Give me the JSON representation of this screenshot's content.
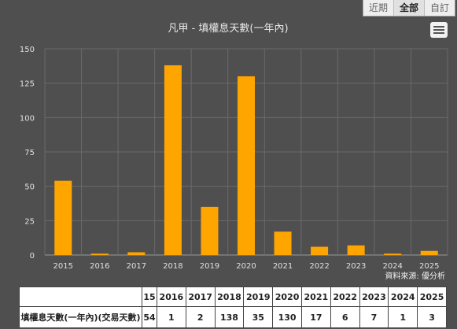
{
  "range_tabs": [
    "近期",
    "全部",
    "自訂"
  ],
  "active_range": "全部",
  "source_text": "資料來源: 優分析",
  "table": {
    "headers": [
      "",
      "15",
      "2016",
      "2017",
      "2018",
      "2019",
      "2020",
      "2021",
      "2022",
      "2023",
      "2024",
      "2025"
    ],
    "row_label": "填權息天數(一年內)(交易天數)",
    "row_values": [
      "54",
      "1",
      "2",
      "138",
      "35",
      "130",
      "17",
      "6",
      "7",
      "1",
      "3"
    ]
  },
  "colors": {
    "bar": "#ffa500",
    "background": "#4f4f4f",
    "grid": "#6a6a6a"
  },
  "chart_data": {
    "type": "bar",
    "title": "凡甲 - 填權息天數(一年內)",
    "categories": [
      "2015",
      "2016",
      "2017",
      "2018",
      "2019",
      "2020",
      "2021",
      "2022",
      "2023",
      "2024",
      "2025"
    ],
    "values": [
      54,
      1,
      2,
      138,
      35,
      130,
      17,
      6,
      7,
      1,
      3
    ],
    "ylim": [
      0,
      150
    ],
    "yticks": [
      0,
      25,
      50,
      75,
      100,
      125,
      150
    ],
    "grid": true,
    "xlabel": "",
    "ylabel": ""
  }
}
